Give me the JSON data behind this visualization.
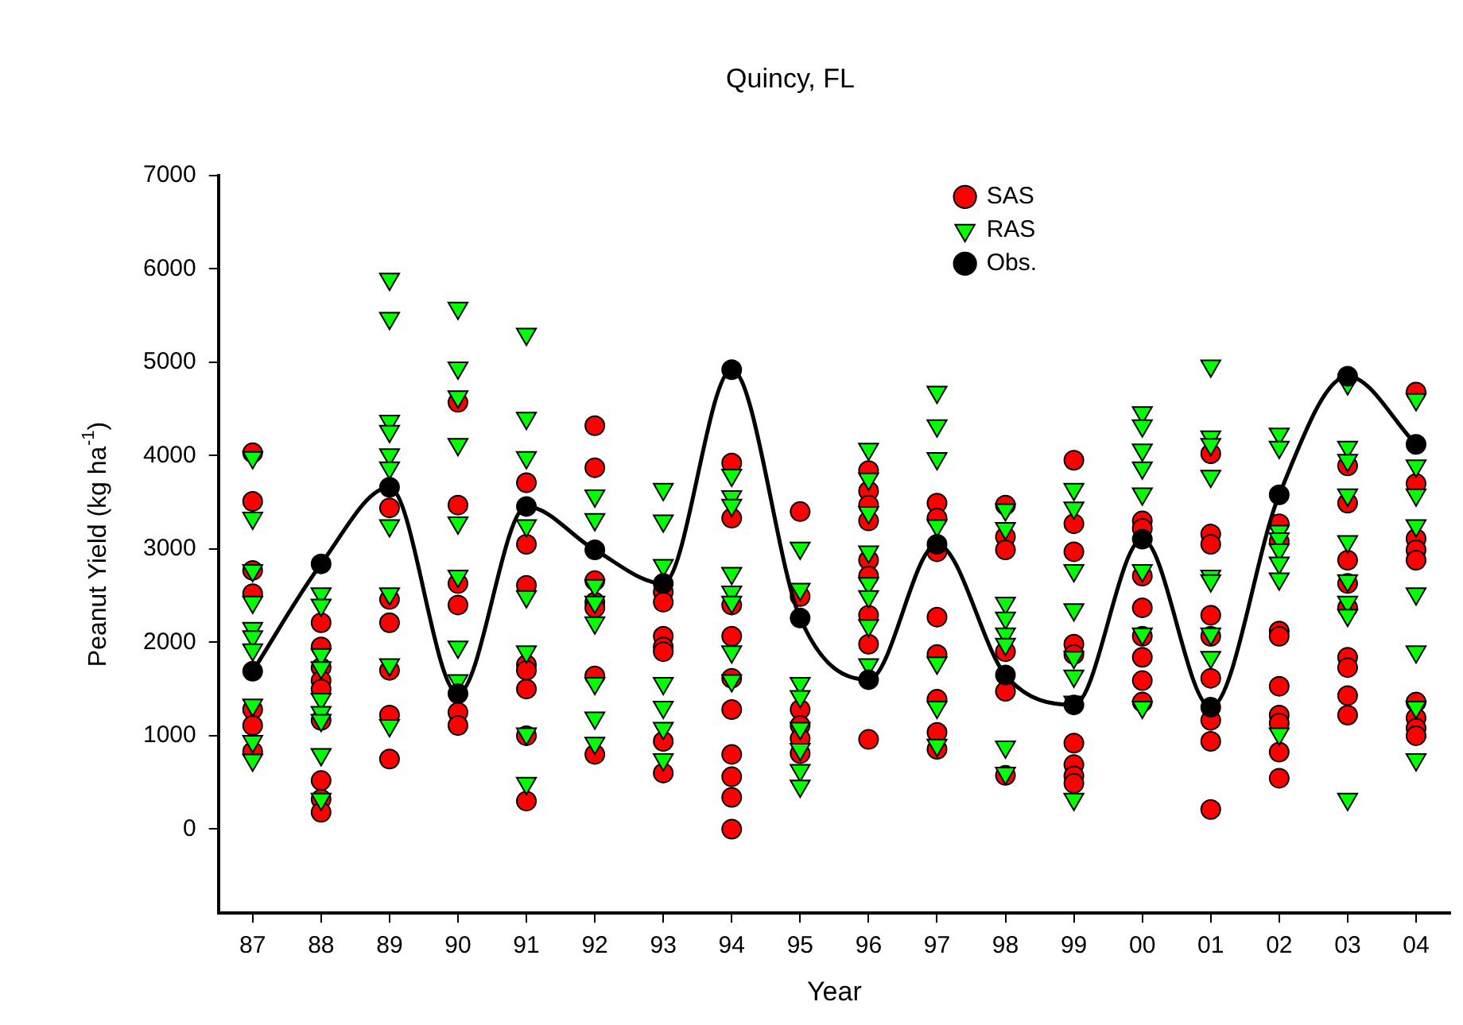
{
  "chart_data": {
    "type": "scatter",
    "title": "Quincy, FL",
    "xlabel": "Year",
    "ylabel": "Peanut Yield (kg ha$^{-1}$)",
    "categories": [
      "87",
      "88",
      "89",
      "90",
      "91",
      "92",
      "93",
      "94",
      "95",
      "96",
      "97",
      "98",
      "99",
      "00",
      "01",
      "02",
      "03",
      "04"
    ],
    "ylim": [
      -900,
      7000
    ],
    "yticks": [
      0,
      1000,
      2000,
      3000,
      4000,
      5000,
      6000,
      7000
    ],
    "grid": false,
    "legend": "top right",
    "series": [
      {
        "name": "SAS",
        "color": "#ff0000",
        "marker": "circle",
        "x": [
          "87",
          "87",
          "87",
          "87",
          "87",
          "87",
          "87",
          "88",
          "88",
          "88",
          "88",
          "88",
          "88",
          "88",
          "88",
          "88",
          "89",
          "89",
          "89",
          "89",
          "89",
          "89",
          "90",
          "90",
          "90",
          "90",
          "90",
          "90",
          "91",
          "91",
          "91",
          "91",
          "91",
          "91",
          "91",
          "91",
          "92",
          "92",
          "92",
          "92",
          "92",
          "92",
          "92",
          "93",
          "93",
          "93",
          "93",
          "93",
          "93",
          "93",
          "94",
          "94",
          "94",
          "94",
          "94",
          "94",
          "94",
          "94",
          "94",
          "94",
          "95",
          "95",
          "95",
          "95",
          "95",
          "95",
          "96",
          "96",
          "96",
          "96",
          "96",
          "96",
          "96",
          "96",
          "96",
          "97",
          "97",
          "97",
          "97",
          "97",
          "97",
          "97",
          "97",
          "98",
          "98",
          "98",
          "98",
          "98",
          "98",
          "99",
          "99",
          "99",
          "99",
          "99",
          "99",
          "99",
          "99",
          "99",
          "00",
          "00",
          "00",
          "00",
          "00",
          "00",
          "00",
          "00",
          "01",
          "01",
          "01",
          "01",
          "01",
          "01",
          "01",
          "01",
          "01",
          "02",
          "02",
          "02",
          "02",
          "02",
          "02",
          "02",
          "02",
          "02",
          "03",
          "03",
          "03",
          "03",
          "03",
          "03",
          "03",
          "03",
          "03",
          "04",
          "04",
          "04",
          "04",
          "04",
          "04",
          "04",
          "04",
          "04"
        ],
        "values": [
          4030,
          3510,
          2770,
          2520,
          1280,
          1110,
          830,
          2210,
          1950,
          1730,
          1590,
          1500,
          1165,
          520,
          320,
          180,
          3440,
          2460,
          2210,
          1700,
          1220,
          750,
          4570,
          3470,
          2630,
          2400,
          1250,
          1110,
          3710,
          3050,
          2610,
          1760,
          1700,
          1500,
          1000,
          300,
          4320,
          3870,
          2660,
          2430,
          2370,
          1640,
          800,
          2540,
          2430,
          2065,
          1950,
          1900,
          940,
          600,
          3920,
          3330,
          2400,
          2065,
          1615,
          1280,
          800,
          560,
          340,
          0,
          3400,
          2490,
          1280,
          1110,
          970,
          810,
          3840,
          3620,
          3470,
          3300,
          2880,
          2710,
          2290,
          1980,
          960,
          3490,
          3330,
          2970,
          2270,
          1870,
          1390,
          1035,
          855,
          3470,
          3130,
          2990,
          1900,
          1475,
          575,
          3950,
          3270,
          2970,
          1980,
          1870,
          920,
          690,
          570,
          490,
          3300,
          3220,
          2710,
          2370,
          2065,
          1840,
          1590,
          1360,
          4020,
          3160,
          3050,
          2290,
          2065,
          1615,
          1165,
          940,
          210,
          3270,
          3080,
          2120,
          2065,
          1530,
          1220,
          1135,
          825,
          545,
          3890,
          3490,
          2880,
          2630,
          2370,
          1840,
          1730,
          1430,
          1220,
          4680,
          3700,
          3110,
          2990,
          2880,
          1360,
          1190,
          1080,
          1000
        ]
      },
      {
        "name": "RAS",
        "color": "#00ff00",
        "marker": "triangle",
        "x": [
          "87",
          "87",
          "87",
          "87",
          "87",
          "87",
          "87",
          "87",
          "87",
          "87",
          "88",
          "88",
          "88",
          "88",
          "88",
          "88",
          "88",
          "88",
          "88",
          "89",
          "89",
          "89",
          "89",
          "89",
          "89",
          "89",
          "89",
          "89",
          "89",
          "90",
          "90",
          "90",
          "90",
          "90",
          "90",
          "90",
          "90",
          "91",
          "91",
          "91",
          "91",
          "91",
          "91",
          "91",
          "91",
          "92",
          "92",
          "92",
          "92",
          "92",
          "92",
          "92",
          "92",
          "93",
          "93",
          "93",
          "93",
          "93",
          "93",
          "93",
          "94",
          "94",
          "94",
          "94",
          "94",
          "94",
          "94",
          "94",
          "95",
          "95",
          "95",
          "95",
          "95",
          "95",
          "95",
          "95",
          "96",
          "96",
          "96",
          "96",
          "96",
          "96",
          "96",
          "96",
          "97",
          "97",
          "97",
          "97",
          "97",
          "97",
          "97",
          "98",
          "98",
          "98",
          "98",
          "98",
          "98",
          "98",
          "98",
          "99",
          "99",
          "99",
          "99",
          "99",
          "99",
          "99",
          "99",
          "00",
          "00",
          "00",
          "00",
          "00",
          "00",
          "00",
          "00",
          "01",
          "01",
          "01",
          "01",
          "01",
          "01",
          "01",
          "01",
          "02",
          "02",
          "02",
          "02",
          "02",
          "02",
          "02",
          "02",
          "03",
          "03",
          "03",
          "03",
          "03",
          "03",
          "03",
          "03",
          "03",
          "04",
          "04",
          "04",
          "04",
          "04",
          "04",
          "04",
          "04"
        ],
        "values": [
          3980,
          3330,
          2770,
          2430,
          2150,
          2060,
          1920,
          1330,
          940,
          740,
          2520,
          2400,
          1870,
          1730,
          1390,
          1250,
          1165,
          800,
          320,
          5890,
          5470,
          4370,
          4260,
          4010,
          3870,
          3250,
          2520,
          1760,
          1110,
          5580,
          4940,
          4630,
          4120,
          3280,
          2710,
          1950,
          1590,
          5300,
          4400,
          3980,
          3250,
          2490,
          1900,
          1020,
          490,
          3570,
          3315,
          2610,
          2430,
          2210,
          1560,
          1190,
          920,
          3640,
          3300,
          2825,
          1560,
          1305,
          1080,
          745,
          3790,
          3560,
          3470,
          2740,
          2540,
          2430,
          1900,
          1590,
          3010,
          2570,
          1560,
          1420,
          1080,
          855,
          630,
          460,
          4070,
          3750,
          3390,
          2970,
          2630,
          2490,
          2180,
          1760,
          4680,
          4320,
          3970,
          3250,
          1780,
          1305,
          900,
          3420,
          3220,
          2420,
          2260,
          2090,
          1980,
          880,
          600,
          3640,
          3440,
          2770,
          2350,
          1840,
          1640,
          1360,
          320,
          4460,
          4320,
          4060,
          3870,
          3590,
          2770,
          2090,
          1305,
          4960,
          4200,
          4120,
          3780,
          2710,
          2660,
          2090,
          1840,
          4230,
          4090,
          3190,
          3110,
          2990,
          2850,
          2680,
          1020,
          4770,
          4090,
          3950,
          3580,
          3080,
          2660,
          2430,
          2290,
          320,
          4600,
          3890,
          3580,
          3250,
          2520,
          1900,
          1305,
          745
        ]
      },
      {
        "name": "Obs.",
        "type": "line",
        "color": "#000000",
        "marker": "circle",
        "line_style": "solid",
        "values": [
          1690,
          2840,
          3660,
          1450,
          3455,
          2990,
          2630,
          4920,
          2260,
          1600,
          3050,
          1650,
          1330,
          3105,
          1305,
          3580,
          4850,
          4120
        ]
      }
    ]
  }
}
